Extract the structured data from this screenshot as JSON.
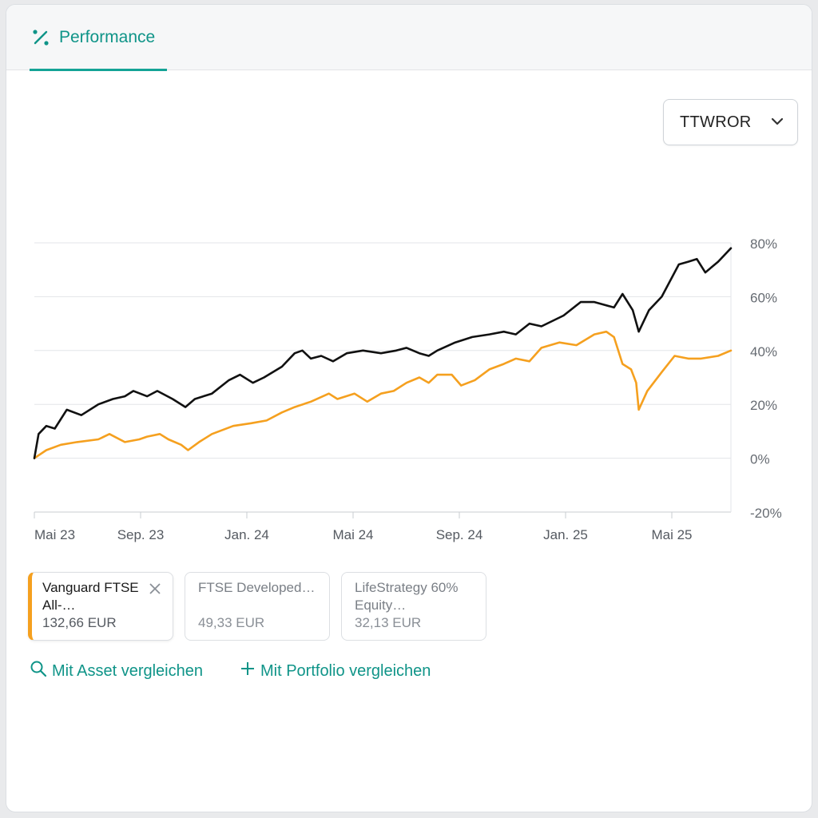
{
  "tabs": [
    {
      "label": "Performance",
      "icon": "percent-icon",
      "active": true
    }
  ],
  "metric_select": {
    "value": "TTWROR",
    "icon": "chevron-down-icon"
  },
  "colors": {
    "accent": "#0f9488",
    "portfolio": "#111111",
    "benchmark": "#f5a01f"
  },
  "chart_data": {
    "type": "line",
    "x_ticks": [
      "Mai 23",
      "Sep. 23",
      "Jan. 24",
      "Mai 24",
      "Sep. 24",
      "Jan. 25",
      "Mai 25"
    ],
    "y_ticks": [
      "80%",
      "60%",
      "40%",
      "20%",
      "0%",
      "-20%"
    ],
    "ylim": [
      -20,
      80
    ],
    "xlim": [
      "2023-05-01",
      "2025-07-25"
    ],
    "series": [
      {
        "color": "#111111",
        "points": [
          [
            "2023-05-01",
            0
          ],
          [
            "2023-05-06",
            9
          ],
          [
            "2023-05-15",
            12
          ],
          [
            "2023-05-25",
            11
          ],
          [
            "2023-06-08",
            18
          ],
          [
            "2023-06-25",
            16
          ],
          [
            "2023-07-15",
            20
          ],
          [
            "2023-08-01",
            22
          ],
          [
            "2023-08-15",
            23
          ],
          [
            "2023-08-25",
            25
          ],
          [
            "2023-09-10",
            23
          ],
          [
            "2023-09-22",
            25
          ],
          [
            "2023-10-10",
            22
          ],
          [
            "2023-10-25",
            19
          ],
          [
            "2023-11-05",
            22
          ],
          [
            "2023-11-25",
            24
          ],
          [
            "2023-12-15",
            29
          ],
          [
            "2023-12-28",
            31
          ],
          [
            "2024-01-12",
            28
          ],
          [
            "2024-01-25",
            30
          ],
          [
            "2024-02-15",
            34
          ],
          [
            "2024-03-01",
            39
          ],
          [
            "2024-03-10",
            40
          ],
          [
            "2024-03-20",
            37
          ],
          [
            "2024-04-01",
            38
          ],
          [
            "2024-04-15",
            36
          ],
          [
            "2024-05-01",
            39
          ],
          [
            "2024-05-20",
            40
          ],
          [
            "2024-06-10",
            39
          ],
          [
            "2024-06-28",
            40
          ],
          [
            "2024-07-10",
            41
          ],
          [
            "2024-07-25",
            39
          ],
          [
            "2024-08-05",
            38
          ],
          [
            "2024-08-15",
            40
          ],
          [
            "2024-09-05",
            43
          ],
          [
            "2024-09-25",
            45
          ],
          [
            "2024-10-15",
            46
          ],
          [
            "2024-11-01",
            47
          ],
          [
            "2024-11-15",
            46
          ],
          [
            "2024-12-01",
            50
          ],
          [
            "2024-12-15",
            49
          ],
          [
            "2025-01-10",
            53
          ],
          [
            "2025-01-30",
            58
          ],
          [
            "2025-02-15",
            58
          ],
          [
            "2025-03-10",
            56
          ],
          [
            "2025-03-20",
            61
          ],
          [
            "2025-04-01",
            55
          ],
          [
            "2025-04-08",
            47
          ],
          [
            "2025-04-20",
            55
          ],
          [
            "2025-05-05",
            60
          ],
          [
            "2025-05-25",
            72
          ],
          [
            "2025-06-05",
            73
          ],
          [
            "2025-06-15",
            74
          ],
          [
            "2025-06-25",
            69
          ],
          [
            "2025-07-10",
            73
          ],
          [
            "2025-07-25",
            78
          ]
        ]
      },
      {
        "color": "#f5a01f",
        "points": [
          [
            "2023-05-01",
            0
          ],
          [
            "2023-05-15",
            3
          ],
          [
            "2023-06-01",
            5
          ],
          [
            "2023-06-20",
            6
          ],
          [
            "2023-07-15",
            7
          ],
          [
            "2023-07-28",
            9
          ],
          [
            "2023-08-15",
            6
          ],
          [
            "2023-09-01",
            7
          ],
          [
            "2023-09-10",
            8
          ],
          [
            "2023-09-25",
            9
          ],
          [
            "2023-10-05",
            7
          ],
          [
            "2023-10-20",
            5
          ],
          [
            "2023-10-28",
            3
          ],
          [
            "2023-11-10",
            6
          ],
          [
            "2023-11-25",
            9
          ],
          [
            "2023-12-20",
            12
          ],
          [
            "2024-01-10",
            13
          ],
          [
            "2024-01-28",
            14
          ],
          [
            "2024-02-15",
            17
          ],
          [
            "2024-03-01",
            19
          ],
          [
            "2024-03-20",
            21
          ],
          [
            "2024-04-10",
            24
          ],
          [
            "2024-04-20",
            22
          ],
          [
            "2024-05-10",
            24
          ],
          [
            "2024-05-25",
            21
          ],
          [
            "2024-06-10",
            24
          ],
          [
            "2024-06-25",
            25
          ],
          [
            "2024-07-10",
            28
          ],
          [
            "2024-07-25",
            30
          ],
          [
            "2024-08-05",
            28
          ],
          [
            "2024-08-15",
            31
          ],
          [
            "2024-09-01",
            31
          ],
          [
            "2024-09-12",
            27
          ],
          [
            "2024-09-28",
            29
          ],
          [
            "2024-10-15",
            33
          ],
          [
            "2024-11-01",
            35
          ],
          [
            "2024-11-15",
            37
          ],
          [
            "2024-12-01",
            36
          ],
          [
            "2024-12-15",
            41
          ],
          [
            "2025-01-05",
            43
          ],
          [
            "2025-01-25",
            42
          ],
          [
            "2025-02-15",
            46
          ],
          [
            "2025-03-01",
            47
          ],
          [
            "2025-03-10",
            45
          ],
          [
            "2025-03-20",
            35
          ],
          [
            "2025-03-30",
            33
          ],
          [
            "2025-04-05",
            28
          ],
          [
            "2025-04-08",
            18
          ],
          [
            "2025-04-18",
            25
          ],
          [
            "2025-05-05",
            32
          ],
          [
            "2025-05-20",
            38
          ],
          [
            "2025-06-05",
            37
          ],
          [
            "2025-06-20",
            37
          ],
          [
            "2025-07-10",
            38
          ],
          [
            "2025-07-25",
            40
          ]
        ]
      }
    ]
  },
  "assets": [
    {
      "name": "Vanguard FTSE All-…",
      "value": "132,66 EUR",
      "active": true
    },
    {
      "name": "FTSE Developed…",
      "value": "49,33 EUR",
      "active": false
    },
    {
      "name": "LifeStrategy 60% Equity…",
      "value": "32,13 EUR",
      "active": false
    }
  ],
  "actions": {
    "compare_asset": "Mit Asset vergleichen",
    "compare_portfolio": "Mit Portfolio vergleichen"
  }
}
